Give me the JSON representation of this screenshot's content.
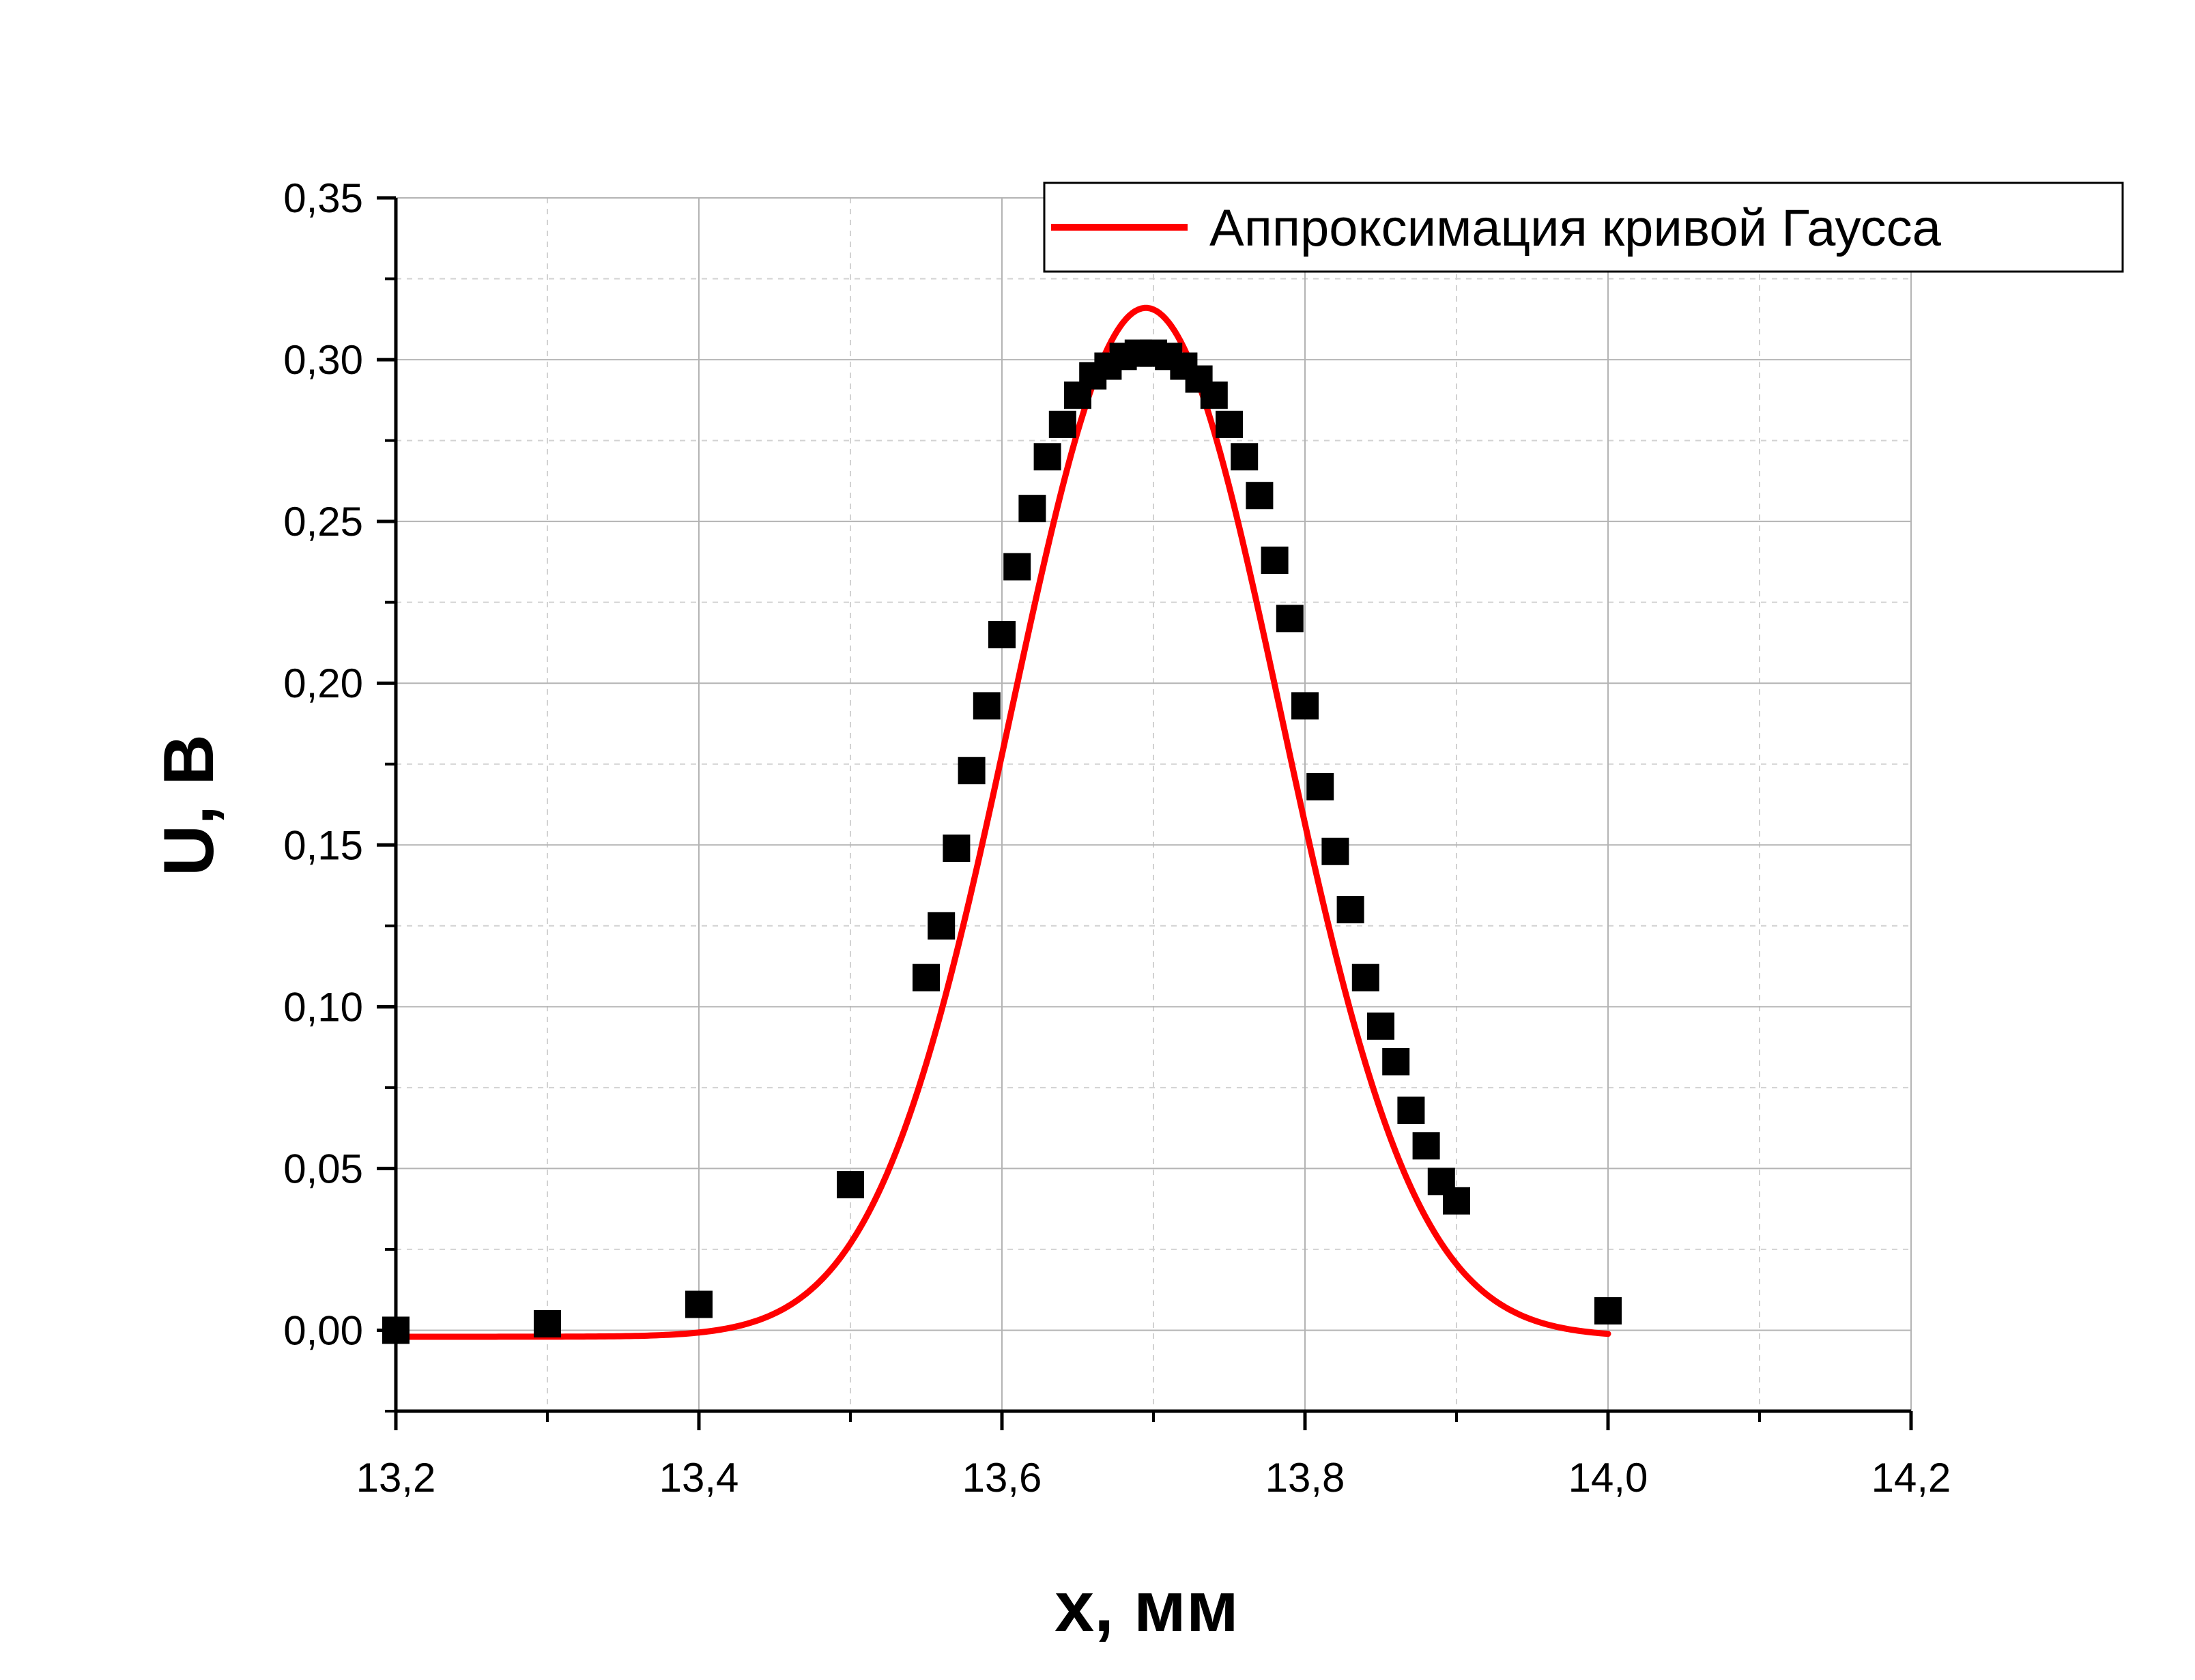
{
  "chart_data": {
    "type": "scatter",
    "title": "",
    "xlabel": "x, мм",
    "ylabel": "U, В",
    "xlim": [
      13.2,
      14.2
    ],
    "ylim": [
      -0.025,
      0.35
    ],
    "x_ticks": [
      "13,2",
      "13,4",
      "13,6",
      "13,8",
      "14,0",
      "14,2"
    ],
    "x_tick_values": [
      13.2,
      13.4,
      13.6,
      13.8,
      14.0,
      14.2
    ],
    "y_ticks": [
      "0,00",
      "0,05",
      "0,10",
      "0,15",
      "0,20",
      "0,25",
      "0,30",
      "0,35"
    ],
    "y_tick_values": [
      0.0,
      0.05,
      0.1,
      0.15,
      0.2,
      0.25,
      0.3,
      0.35
    ],
    "grid": true,
    "legend_position": "top-right",
    "series": [
      {
        "kind": "points",
        "marker": "square",
        "color": "#000000",
        "x": [
          13.2,
          13.3,
          13.4,
          13.5,
          13.55,
          13.56,
          13.57,
          13.58,
          13.59,
          13.6,
          13.61,
          13.62,
          13.63,
          13.64,
          13.65,
          13.66,
          13.67,
          13.68,
          13.69,
          13.7,
          13.71,
          13.72,
          13.73,
          13.74,
          13.75,
          13.76,
          13.77,
          13.78,
          13.79,
          13.8,
          13.81,
          13.82,
          13.83,
          13.84,
          13.85,
          13.86,
          13.87,
          13.88,
          13.89,
          13.9,
          14.0
        ],
        "y": [
          0.0,
          0.002,
          0.008,
          0.045,
          0.109,
          0.125,
          0.149,
          0.173,
          0.193,
          0.215,
          0.236,
          0.254,
          0.27,
          0.28,
          0.289,
          0.295,
          0.298,
          0.301,
          0.302,
          0.302,
          0.301,
          0.298,
          0.294,
          0.289,
          0.28,
          0.27,
          0.258,
          0.238,
          0.22,
          0.193,
          0.168,
          0.148,
          0.13,
          0.109,
          0.094,
          0.083,
          0.068,
          0.057,
          0.046,
          0.04,
          0.006
        ]
      },
      {
        "name": "Аппроксимация кривой Гаусса",
        "kind": "line",
        "color": "#ff0000",
        "model": "gaussian",
        "x_range": [
          13.2,
          14.0
        ],
        "offset": -0.002,
        "amplitude": 0.318,
        "center": 13.695,
        "sigma": 0.089
      }
    ]
  }
}
